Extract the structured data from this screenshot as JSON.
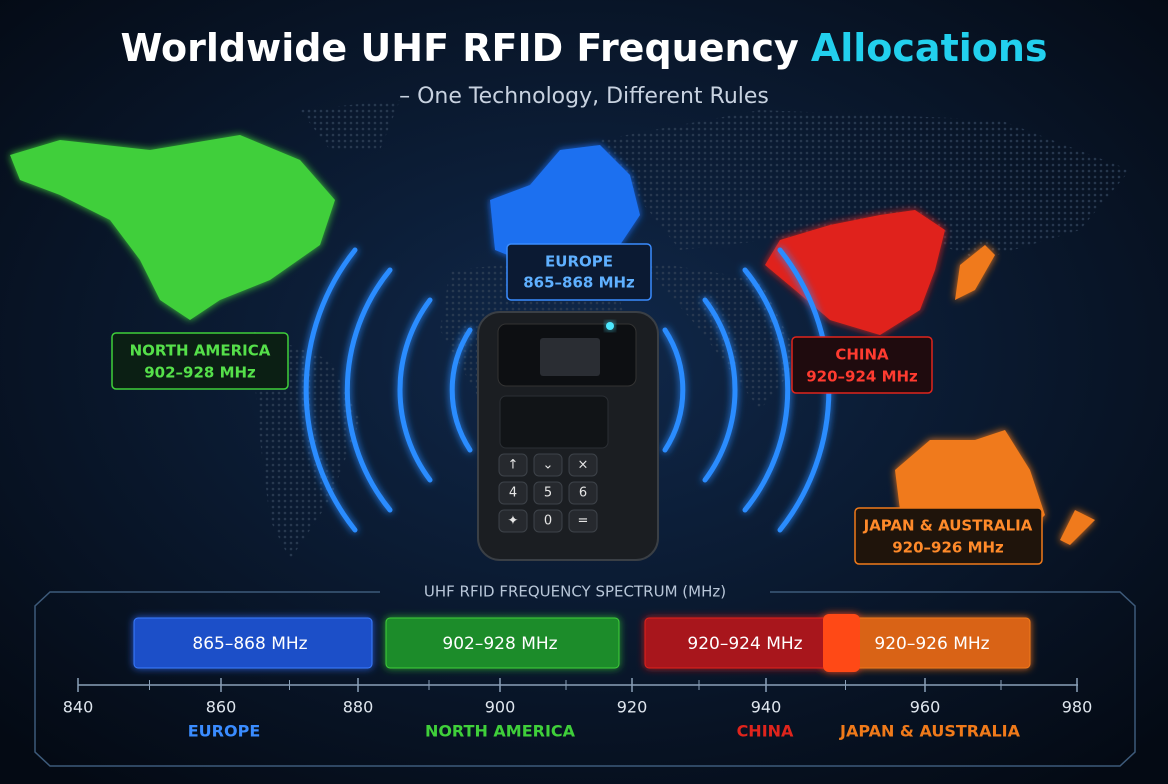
{
  "header": {
    "title_main": "Worldwide UHF RFID Frequency",
    "title_accent": "Allocations",
    "subtitle": "– One Technology, Different Rules"
  },
  "regions": [
    {
      "name": "EUROPE",
      "band": "865–868 MHz"
    },
    {
      "name": "NORTH AMERICA",
      "band": "902–928 MHz"
    },
    {
      "name": "CHINA",
      "band": "920–924 MHz"
    },
    {
      "name": "JAPAN & AUSTRALIA",
      "band": "920–926 MHz"
    }
  ],
  "device": {
    "keys": [
      "↑",
      "⌄",
      "×",
      "4",
      "5",
      "6",
      "✦",
      "0",
      "="
    ]
  },
  "spectrum": {
    "title": "UHF RFID FREQUENCY SPECTRUM (MHz)",
    "axis_labels": [
      "840",
      "860",
      "880",
      "900",
      "920",
      "940",
      "960",
      "980"
    ]
  }
}
